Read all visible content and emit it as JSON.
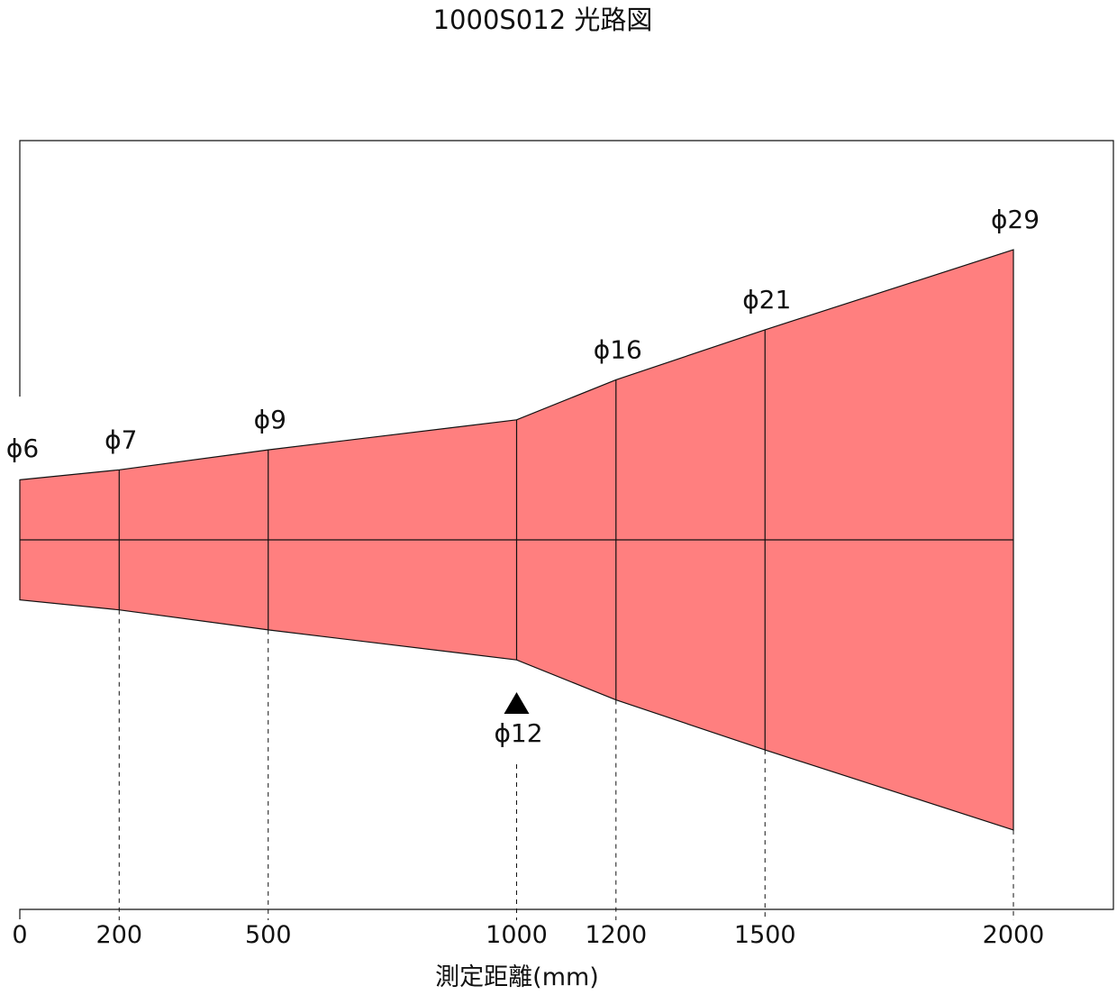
{
  "title": "1000S012 光路図",
  "chart_data": {
    "type": "area",
    "title": "1000S012 光路図",
    "xlabel": "測定距離(mm)",
    "xlim": [
      0,
      2200
    ],
    "x_ticks": [
      {
        "value": 0,
        "label": "0"
      },
      {
        "value": 200,
        "label": "200"
      },
      {
        "value": 500,
        "label": "500"
      },
      {
        "value": 1000,
        "label": "1000"
      },
      {
        "value": 1200,
        "label": "1200"
      },
      {
        "value": 1500,
        "label": "1500"
      },
      {
        "value": 2000,
        "label": "2000"
      }
    ],
    "points": [
      {
        "distance": 0,
        "diameter": 6,
        "label": "ϕ6"
      },
      {
        "distance": 200,
        "diameter": 7,
        "label": "ϕ7"
      },
      {
        "distance": 500,
        "diameter": 9,
        "label": "ϕ9"
      },
      {
        "distance": 1000,
        "diameter": 12,
        "label": "ϕ12",
        "focal_point": true
      },
      {
        "distance": 1200,
        "diameter": 16,
        "label": "ϕ16"
      },
      {
        "distance": 1500,
        "diameter": 21,
        "label": "ϕ21"
      },
      {
        "distance": 2000,
        "diameter": 29,
        "label": "ϕ29"
      }
    ],
    "fill_color": "#ff7f7f",
    "line_color": "#111111"
  }
}
